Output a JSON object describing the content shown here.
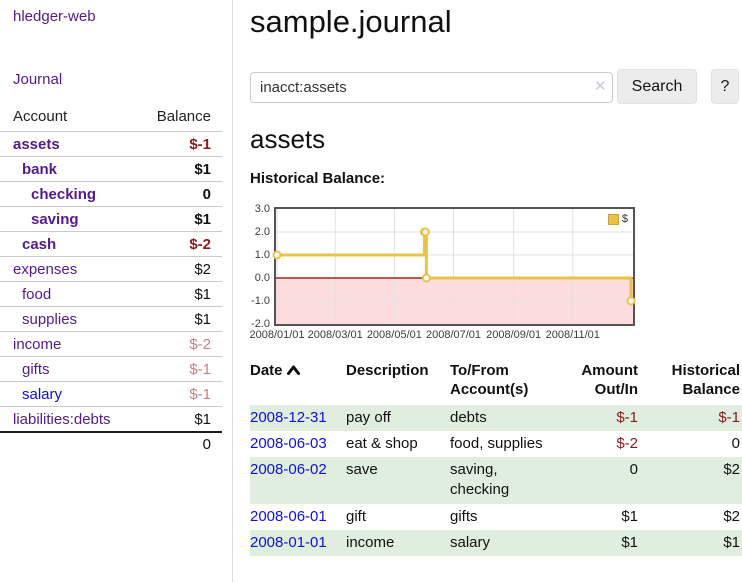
{
  "app": {
    "brand": "hledger-web"
  },
  "sidebar": {
    "journal_link": "Journal",
    "accounts": {
      "header": {
        "account": "Account",
        "balance": "Balance"
      },
      "rows": [
        {
          "name": "assets",
          "balance": "$-1",
          "indent": 1,
          "bold": true,
          "name_color": "purple",
          "balance_tone": "neg"
        },
        {
          "name": "bank",
          "balance": "$1",
          "indent": 2,
          "bold": true,
          "name_color": "purple",
          "balance_tone": "pos"
        },
        {
          "name": "checking",
          "balance": "0",
          "indent": 3,
          "bold": true,
          "name_color": "purple",
          "balance_tone": "pos"
        },
        {
          "name": "saving",
          "balance": "$1",
          "indent": 3,
          "bold": true,
          "name_color": "purple",
          "balance_tone": "pos"
        },
        {
          "name": "cash",
          "balance": "$-2",
          "indent": 2,
          "bold": true,
          "name_color": "purple",
          "balance_tone": "neg"
        },
        {
          "name": "expenses",
          "balance": "$2",
          "indent": 1,
          "bold": false,
          "name_color": "purple",
          "balance_tone": "pos"
        },
        {
          "name": "food",
          "balance": "$1",
          "indent": 2,
          "bold": false,
          "name_color": "purple",
          "balance_tone": "pos"
        },
        {
          "name": "supplies",
          "balance": "$1",
          "indent": 2,
          "bold": false,
          "name_color": "purple",
          "balance_tone": "pos"
        },
        {
          "name": "income",
          "balance": "$-2",
          "indent": 1,
          "bold": false,
          "name_color": "purple",
          "balance_tone": "negdim"
        },
        {
          "name": "gifts",
          "balance": "$-1",
          "indent": 2,
          "bold": false,
          "name_color": "purple",
          "balance_tone": "negdim"
        },
        {
          "name": "salary",
          "balance": "$-1",
          "indent": 2,
          "bold": false,
          "name_color": "blue",
          "balance_tone": "negdim"
        },
        {
          "name": "liabilities:debts",
          "balance": "$1",
          "indent": 1,
          "bold": false,
          "name_color": "purple",
          "balance_tone": "pos"
        }
      ],
      "total": "0"
    }
  },
  "main": {
    "title": "sample.journal",
    "search": {
      "value": "inacct:assets",
      "clear_icon": "✕",
      "button": "Search",
      "help": "?"
    },
    "heading": "assets",
    "chart_title": "Historical Balance:"
  },
  "chart_data": {
    "type": "line",
    "style": "step",
    "title": "Historical Balance:",
    "legend": [
      "$"
    ],
    "legend_position": "top-right",
    "x": [
      "2008-01-01",
      "2008-06-01",
      "2008-06-02",
      "2008-06-03",
      "2008-12-31"
    ],
    "values": [
      1,
      2,
      2,
      0,
      -1
    ],
    "x_ticks": [
      "2008/01/01",
      "2008/03/01",
      "2008/05/01",
      "2008/07/01",
      "2008/09/01",
      "2008/11/01"
    ],
    "y_ticks": [
      "3.0",
      "2.0",
      "1.0",
      "0.0",
      "-1.0",
      "-2.0"
    ],
    "ylim": [
      -2,
      3
    ],
    "grid": true,
    "series_color": "#e9c348",
    "negative_region_color": "#fcdcdc",
    "zero_line_color": "#8b0000"
  },
  "register": {
    "headers": {
      "date": "Date",
      "description": "Description",
      "accounts": "To/From Account(s)",
      "amount": "Amount Out/In",
      "balance": "Historical Balance"
    },
    "rows": [
      {
        "date": "2008-12-31",
        "description": "pay off",
        "accounts": "debts",
        "amount": "$-1",
        "amount_tone": "neg",
        "balance": "$-1",
        "balance_tone": "neg",
        "shaded": true
      },
      {
        "date": "2008-06-03",
        "description": "eat & shop",
        "accounts": "food, supplies",
        "amount": "$-2",
        "amount_tone": "neg",
        "balance": "0",
        "balance_tone": "pos",
        "shaded": false
      },
      {
        "date": "2008-06-02",
        "description": "save",
        "accounts": "saving, checking",
        "amount": "0",
        "amount_tone": "pos",
        "balance": "$2",
        "balance_tone": "pos",
        "shaded": true
      },
      {
        "date": "2008-06-01",
        "description": "gift",
        "accounts": "gifts",
        "amount": "$1",
        "amount_tone": "pos",
        "balance": "$2",
        "balance_tone": "pos",
        "shaded": false
      },
      {
        "date": "2008-01-01",
        "description": "income",
        "accounts": "salary",
        "amount": "$1",
        "amount_tone": "pos",
        "balance": "$1",
        "balance_tone": "pos",
        "shaded": true
      }
    ]
  },
  "colors": {
    "link_purple": "#551a8b",
    "link_blue": "#0f0fdd",
    "negative_strong": "#8b1a1a",
    "negative_dim": "#c4827e",
    "row_shade_green": "#dfeede",
    "series_yellow": "#e9c348",
    "chart_negative_bg": "#fcdcdc",
    "zero_line_red": "#8b0000"
  }
}
